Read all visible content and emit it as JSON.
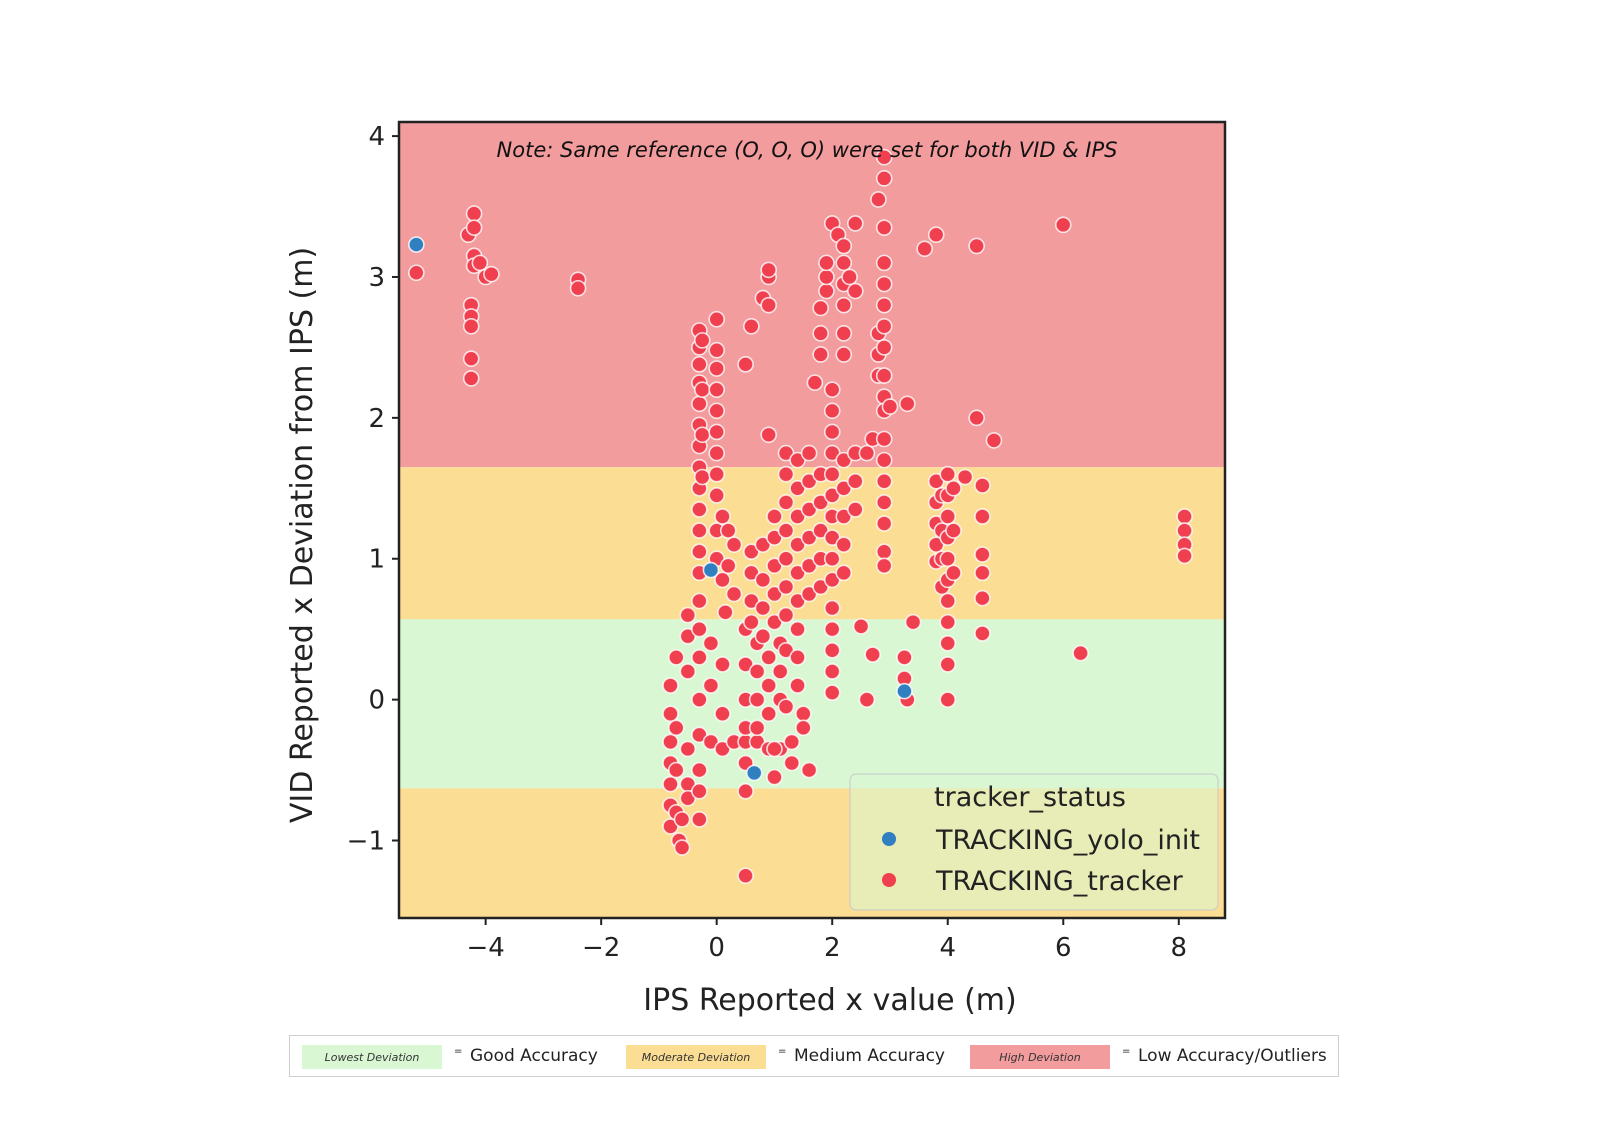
{
  "chart_data": {
    "type": "scatter",
    "xlabel": "IPS Reported x value (m)",
    "ylabel": "VID Reported x Deviation from IPS (m)",
    "xlim": [
      -5.5,
      8.8
    ],
    "ylim": [
      -1.55,
      4.1
    ],
    "xticks": [
      -4,
      -2,
      0,
      2,
      4,
      6,
      8
    ],
    "yticks": [
      -1,
      0,
      1,
      2,
      3,
      4
    ],
    "xtick_labels": [
      "−4",
      "−2",
      "0",
      "2",
      "4",
      "6",
      "8"
    ],
    "ytick_labels": [
      "−1",
      "0",
      "1",
      "2",
      "3",
      "4"
    ],
    "annotation": "Note: Same reference (O, O, O) were set for both VID & IPS",
    "grid": false,
    "legend_placement": "lower-right",
    "legend_title": "tracker_status",
    "bands": [
      {
        "y0": 1.65,
        "y1": 4.1,
        "color": "#f29c9e",
        "level": "high"
      },
      {
        "y0": 0.57,
        "y1": 1.65,
        "color": "#fbdd93",
        "level": "moderate"
      },
      {
        "y0": -0.63,
        "y1": 0.57,
        "color": "#d9f7d3",
        "level": "lowest"
      },
      {
        "y0": -1.55,
        "y1": -0.63,
        "color": "#fbdd93",
        "level": "moderate"
      }
    ],
    "series": [
      {
        "name": "TRACKING_yolo_init",
        "color": "#2f7fc1",
        "points": [
          [
            -5.2,
            3.23
          ],
          [
            -0.1,
            0.92
          ],
          [
            0.65,
            -0.52
          ],
          [
            3.25,
            0.06
          ]
        ]
      },
      {
        "name": "TRACKING_tracker",
        "color": "#f04050",
        "points": [
          [
            -5.2,
            3.03
          ],
          [
            -4.3,
            3.3
          ],
          [
            -4.2,
            3.45
          ],
          [
            -4.2,
            3.35
          ],
          [
            -4.2,
            3.15
          ],
          [
            -4.2,
            3.08
          ],
          [
            -4.25,
            2.8
          ],
          [
            -4.25,
            2.72
          ],
          [
            -4.25,
            2.65
          ],
          [
            -4.25,
            2.42
          ],
          [
            -4.25,
            2.28
          ],
          [
            -4.1,
            3.1
          ],
          [
            -4.0,
            3.0
          ],
          [
            -3.9,
            3.02
          ],
          [
            -2.4,
            2.98
          ],
          [
            -2.4,
            2.92
          ],
          [
            -0.3,
            2.62
          ],
          [
            -0.3,
            2.5
          ],
          [
            -0.3,
            2.38
          ],
          [
            -0.3,
            2.25
          ],
          [
            -0.3,
            2.1
          ],
          [
            -0.3,
            1.95
          ],
          [
            -0.3,
            1.8
          ],
          [
            -0.3,
            1.65
          ],
          [
            -0.3,
            1.5
          ],
          [
            -0.3,
            1.35
          ],
          [
            -0.3,
            1.2
          ],
          [
            -0.3,
            1.05
          ],
          [
            -0.3,
            0.9
          ],
          [
            -0.25,
            2.55
          ],
          [
            -0.25,
            2.2
          ],
          [
            -0.25,
            1.88
          ],
          [
            -0.25,
            1.58
          ],
          [
            0.0,
            2.7
          ],
          [
            0.0,
            2.48
          ],
          [
            0.0,
            2.35
          ],
          [
            0.0,
            2.2
          ],
          [
            0.0,
            2.05
          ],
          [
            0.0,
            1.9
          ],
          [
            0.0,
            1.75
          ],
          [
            0.0,
            1.6
          ],
          [
            0.0,
            1.45
          ],
          [
            0.0,
            1.2
          ],
          [
            0.0,
            1.0
          ],
          [
            0.1,
            1.3
          ],
          [
            0.2,
            1.2
          ],
          [
            0.3,
            1.1
          ],
          [
            0.1,
            0.85
          ],
          [
            0.2,
            0.95
          ],
          [
            0.3,
            0.75
          ],
          [
            0.15,
            0.62
          ],
          [
            0.5,
            2.38
          ],
          [
            0.6,
            2.65
          ],
          [
            0.8,
            2.85
          ],
          [
            0.9,
            3.0
          ],
          [
            0.9,
            3.05
          ],
          [
            0.9,
            2.8
          ],
          [
            0.9,
            1.88
          ],
          [
            -0.8,
            0.1
          ],
          [
            -0.8,
            -0.1
          ],
          [
            -0.8,
            -0.3
          ],
          [
            -0.8,
            -0.45
          ],
          [
            -0.8,
            -0.6
          ],
          [
            -0.8,
            -0.75
          ],
          [
            -0.8,
            -0.9
          ],
          [
            -0.7,
            0.3
          ],
          [
            -0.7,
            -0.2
          ],
          [
            -0.7,
            -0.5
          ],
          [
            -0.7,
            -0.8
          ],
          [
            -0.65,
            -1.0
          ],
          [
            -0.6,
            -0.85
          ],
          [
            -0.6,
            -1.05
          ],
          [
            -0.5,
            0.6
          ],
          [
            -0.5,
            0.45
          ],
          [
            -0.5,
            0.2
          ],
          [
            -0.5,
            -0.35
          ],
          [
            -0.5,
            -0.6
          ],
          [
            -0.5,
            -0.7
          ],
          [
            -0.3,
            0.7
          ],
          [
            -0.3,
            0.5
          ],
          [
            -0.3,
            0.3
          ],
          [
            -0.3,
            0.0
          ],
          [
            -0.3,
            -0.25
          ],
          [
            -0.3,
            -0.5
          ],
          [
            -0.3,
            -0.65
          ],
          [
            -0.3,
            -0.85
          ],
          [
            -0.1,
            0.4
          ],
          [
            -0.1,
            0.1
          ],
          [
            -0.1,
            -0.3
          ],
          [
            0.1,
            0.25
          ],
          [
            0.1,
            -0.1
          ],
          [
            0.1,
            -0.35
          ],
          [
            0.3,
            -0.3
          ],
          [
            0.5,
            -0.3
          ],
          [
            0.7,
            -0.3
          ],
          [
            0.9,
            -0.35
          ],
          [
            1.1,
            -0.35
          ],
          [
            1.3,
            -0.3
          ],
          [
            0.5,
            0.5
          ],
          [
            0.5,
            0.25
          ],
          [
            0.5,
            0.0
          ],
          [
            0.5,
            -0.2
          ],
          [
            0.5,
            -0.45
          ],
          [
            0.5,
            -0.65
          ],
          [
            0.5,
            -1.25
          ],
          [
            0.6,
            1.05
          ],
          [
            0.6,
            0.9
          ],
          [
            0.6,
            0.7
          ],
          [
            0.6,
            0.55
          ],
          [
            0.7,
            0.4
          ],
          [
            0.7,
            0.2
          ],
          [
            0.7,
            0.0
          ],
          [
            0.7,
            -0.2
          ],
          [
            0.8,
            1.1
          ],
          [
            0.8,
            0.85
          ],
          [
            0.8,
            0.65
          ],
          [
            0.8,
            0.45
          ],
          [
            0.9,
            0.3
          ],
          [
            0.9,
            0.1
          ],
          [
            0.9,
            -0.1
          ],
          [
            1.0,
            -0.35
          ],
          [
            1.0,
            -0.55
          ],
          [
            1.0,
            1.3
          ],
          [
            1.0,
            1.15
          ],
          [
            1.0,
            0.95
          ],
          [
            1.0,
            0.75
          ],
          [
            1.0,
            0.55
          ],
          [
            1.1,
            0.4
          ],
          [
            1.1,
            0.2
          ],
          [
            1.1,
            0.0
          ],
          [
            1.2,
            1.75
          ],
          [
            1.2,
            1.6
          ],
          [
            1.2,
            1.4
          ],
          [
            1.2,
            1.2
          ],
          [
            1.2,
            1.0
          ],
          [
            1.2,
            0.8
          ],
          [
            1.2,
            0.6
          ],
          [
            1.2,
            0.35
          ],
          [
            1.2,
            -0.05
          ],
          [
            1.3,
            -0.45
          ],
          [
            1.4,
            1.7
          ],
          [
            1.4,
            1.5
          ],
          [
            1.4,
            1.3
          ],
          [
            1.4,
            1.1
          ],
          [
            1.4,
            0.9
          ],
          [
            1.4,
            0.7
          ],
          [
            1.4,
            0.5
          ],
          [
            1.4,
            0.3
          ],
          [
            1.4,
            0.1
          ],
          [
            1.5,
            -0.1
          ],
          [
            1.5,
            -0.2
          ],
          [
            1.6,
            -0.5
          ],
          [
            1.6,
            1.75
          ],
          [
            1.6,
            1.55
          ],
          [
            1.6,
            1.35
          ],
          [
            1.6,
            1.15
          ],
          [
            1.6,
            0.95
          ],
          [
            1.6,
            0.75
          ],
          [
            1.7,
            2.25
          ],
          [
            1.8,
            2.45
          ],
          [
            1.8,
            2.6
          ],
          [
            1.8,
            2.78
          ],
          [
            1.9,
            2.9
          ],
          [
            1.9,
            3.0
          ],
          [
            1.9,
            3.1
          ],
          [
            1.8,
            1.6
          ],
          [
            1.8,
            1.4
          ],
          [
            1.8,
            1.2
          ],
          [
            1.8,
            1.0
          ],
          [
            1.8,
            0.8
          ],
          [
            2.0,
            3.38
          ],
          [
            2.1,
            3.3
          ],
          [
            2.2,
            3.22
          ],
          [
            2.4,
            3.38
          ],
          [
            2.0,
            2.2
          ],
          [
            2.0,
            2.05
          ],
          [
            2.0,
            1.9
          ],
          [
            2.0,
            1.75
          ],
          [
            2.0,
            1.6
          ],
          [
            2.0,
            1.45
          ],
          [
            2.0,
            1.3
          ],
          [
            2.0,
            1.15
          ],
          [
            2.0,
            1.0
          ],
          [
            2.0,
            0.85
          ],
          [
            2.0,
            0.65
          ],
          [
            2.0,
            0.5
          ],
          [
            2.0,
            0.35
          ],
          [
            2.0,
            0.2
          ],
          [
            2.0,
            0.05
          ],
          [
            2.2,
            3.1
          ],
          [
            2.2,
            2.95
          ],
          [
            2.2,
            2.8
          ],
          [
            2.2,
            2.6
          ],
          [
            2.2,
            2.45
          ],
          [
            2.2,
            1.7
          ],
          [
            2.2,
            1.5
          ],
          [
            2.2,
            1.3
          ],
          [
            2.2,
            1.1
          ],
          [
            2.2,
            0.9
          ],
          [
            2.3,
            3.0
          ],
          [
            2.4,
            2.9
          ],
          [
            2.4,
            1.75
          ],
          [
            2.4,
            1.55
          ],
          [
            2.4,
            1.35
          ],
          [
            2.5,
            0.52
          ],
          [
            2.6,
            0.0
          ],
          [
            2.7,
            0.32
          ],
          [
            2.6,
            1.75
          ],
          [
            2.7,
            1.85
          ],
          [
            2.8,
            3.55
          ],
          [
            2.8,
            2.6
          ],
          [
            2.8,
            2.45
          ],
          [
            2.8,
            2.3
          ],
          [
            2.9,
            3.85
          ],
          [
            2.9,
            3.7
          ],
          [
            2.9,
            3.35
          ],
          [
            2.9,
            3.1
          ],
          [
            2.9,
            2.95
          ],
          [
            2.9,
            2.8
          ],
          [
            2.9,
            2.65
          ],
          [
            2.9,
            2.5
          ],
          [
            2.9,
            2.3
          ],
          [
            2.9,
            2.15
          ],
          [
            2.9,
            2.05
          ],
          [
            2.9,
            1.85
          ],
          [
            2.9,
            1.7
          ],
          [
            2.9,
            1.55
          ],
          [
            2.9,
            1.4
          ],
          [
            2.9,
            1.25
          ],
          [
            2.9,
            1.05
          ],
          [
            2.9,
            0.95
          ],
          [
            3.0,
            2.08
          ],
          [
            3.3,
            2.1
          ],
          [
            3.25,
            0.3
          ],
          [
            3.25,
            0.15
          ],
          [
            3.3,
            0.0
          ],
          [
            3.4,
            0.55
          ],
          [
            3.6,
            3.2
          ],
          [
            3.8,
            3.3
          ],
          [
            3.8,
            1.55
          ],
          [
            3.8,
            1.4
          ],
          [
            3.8,
            1.25
          ],
          [
            3.8,
            1.1
          ],
          [
            3.8,
            0.98
          ],
          [
            3.9,
            1.45
          ],
          [
            3.9,
            1.2
          ],
          [
            3.9,
            1.0
          ],
          [
            3.9,
            0.8
          ],
          [
            4.0,
            1.6
          ],
          [
            4.0,
            1.45
          ],
          [
            4.0,
            1.3
          ],
          [
            4.0,
            1.15
          ],
          [
            4.0,
            1.0
          ],
          [
            4.0,
            0.85
          ],
          [
            4.0,
            0.7
          ],
          [
            4.0,
            0.55
          ],
          [
            4.0,
            0.4
          ],
          [
            4.0,
            0.25
          ],
          [
            4.0,
            0.0
          ],
          [
            4.1,
            1.5
          ],
          [
            4.1,
            1.2
          ],
          [
            4.1,
            0.9
          ],
          [
            4.3,
            1.58
          ],
          [
            4.5,
            3.22
          ],
          [
            4.5,
            2.0
          ],
          [
            4.8,
            1.84
          ],
          [
            4.6,
            1.52
          ],
          [
            4.6,
            1.3
          ],
          [
            4.6,
            1.03
          ],
          [
            4.6,
            0.9
          ],
          [
            4.6,
            0.72
          ],
          [
            4.6,
            0.47
          ],
          [
            6.0,
            3.37
          ],
          [
            6.3,
            0.33
          ],
          [
            8.1,
            1.3
          ],
          [
            8.1,
            1.2
          ],
          [
            8.1,
            1.1
          ],
          [
            8.1,
            1.02
          ]
        ]
      }
    ]
  },
  "key": {
    "items": [
      {
        "swatch_label": "Lowest Deviation",
        "eq": "=",
        "text": "Good Accuracy",
        "color": "#d9f7d3"
      },
      {
        "swatch_label": "Moderate Deviation",
        "eq": "=",
        "text": "Medium Accuracy",
        "color": "#fbdd93"
      },
      {
        "swatch_label": "High Deviation",
        "eq": "=",
        "text": "Low Accuracy/Outliers",
        "color": "#f29c9e"
      }
    ]
  }
}
